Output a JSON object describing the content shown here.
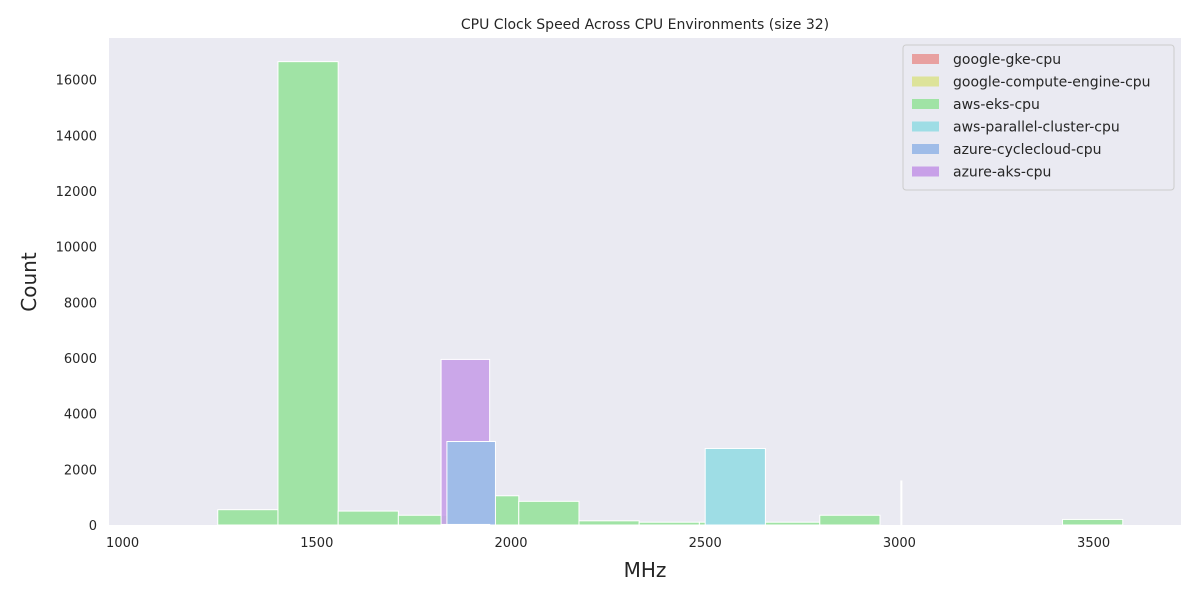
{
  "chart_data": {
    "type": "histogram",
    "title": "CPU Clock Speed Across CPU Environments (size 32)",
    "xlabel": "MHz",
    "ylabel": "Count",
    "xlim": [
      965,
      3725
    ],
    "ylim": [
      0,
      17500
    ],
    "xticks": [
      1000,
      1500,
      2000,
      2500,
      3000,
      3500
    ],
    "yticks": [
      0,
      2000,
      4000,
      6000,
      8000,
      10000,
      12000,
      14000,
      16000
    ],
    "grid": false,
    "legend_position": "top-right",
    "series": [
      {
        "name": "google-gke-cpu",
        "color": "#e8a0a0",
        "bins": [
          {
            "x0": 1820,
            "x1": 1945,
            "count": 20
          }
        ]
      },
      {
        "name": "google-compute-engine-cpu",
        "color": "#dde39a",
        "bins": [
          {
            "x0": 1820,
            "x1": 1945,
            "count": 15
          }
        ]
      },
      {
        "name": "aws-eks-cpu",
        "color": "#a0e3a5",
        "bins": [
          {
            "x0": 1245,
            "x1": 1400,
            "count": 550
          },
          {
            "x0": 1400,
            "x1": 1555,
            "count": 16650
          },
          {
            "x0": 1555,
            "x1": 1710,
            "count": 500
          },
          {
            "x0": 1710,
            "x1": 1865,
            "count": 350
          },
          {
            "x0": 1865,
            "x1": 2020,
            "count": 1050
          },
          {
            "x0": 2020,
            "x1": 2175,
            "count": 850
          },
          {
            "x0": 2175,
            "x1": 2330,
            "count": 150
          },
          {
            "x0": 2330,
            "x1": 2485,
            "count": 100
          },
          {
            "x0": 2485,
            "x1": 2640,
            "count": 100
          },
          {
            "x0": 2640,
            "x1": 2795,
            "count": 100
          },
          {
            "x0": 2795,
            "x1": 2950,
            "count": 350
          },
          {
            "x0": 3420,
            "x1": 3575,
            "count": 200
          }
        ]
      },
      {
        "name": "aws-parallel-cluster-cpu",
        "color": "#9edde5",
        "bins": [
          {
            "x0": 2500,
            "x1": 2655,
            "count": 2750
          }
        ]
      },
      {
        "name": "azure-cyclecloud-cpu",
        "color": "#9fbce8",
        "bins": [
          {
            "x0": 1835,
            "x1": 1960,
            "count": 3000
          }
        ]
      },
      {
        "name": "azure-aks-cpu",
        "color": "#c8a0e8",
        "bins": [
          {
            "x0": 1820,
            "x1": 1945,
            "count": 5950
          }
        ]
      }
    ],
    "annotations": [
      {
        "type": "vertical-line",
        "x": 3005,
        "y0": 0,
        "y1": 1600,
        "color": "#ffffff"
      }
    ]
  }
}
